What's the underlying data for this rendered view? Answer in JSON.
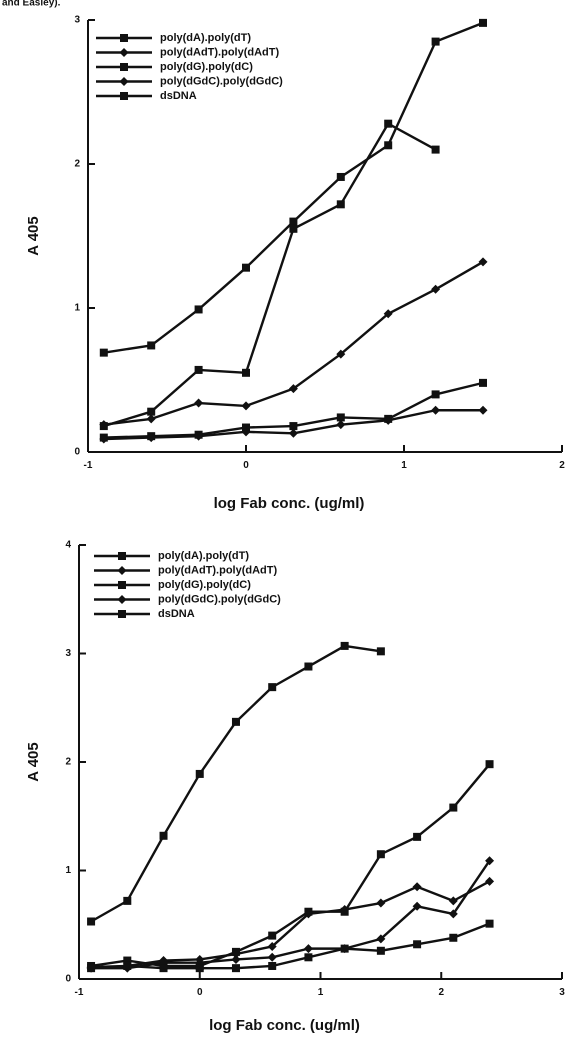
{
  "header_fragment": "and Easley).",
  "chart_data": [
    {
      "type": "line",
      "xlabel": "log Fab conc. (ug/ml)",
      "ylabel": "A 405",
      "xlim": [
        -1,
        2
      ],
      "ylim": [
        0,
        3
      ],
      "x_ticks": [
        "-1",
        "0",
        "1",
        "2"
      ],
      "y_ticks": [
        "0",
        "1",
        "2",
        "3"
      ],
      "grid": false,
      "legend_position": "top-left",
      "series": [
        {
          "name": "poly(dA).poly(dT)",
          "marker": "square",
          "x": [
            -0.9,
            -0.6,
            -0.3,
            0,
            0.3,
            0.6,
            0.9,
            1.2,
            1.5
          ],
          "y": [
            0.69,
            0.74,
            0.99,
            1.28,
            1.6,
            1.91,
            2.13,
            2.85,
            2.98
          ]
        },
        {
          "name": "poly(dAdT).poly(dAdT)",
          "marker": "diamond",
          "x": [
            -0.9,
            -0.6,
            -0.3,
            0,
            0.3,
            0.6,
            0.9,
            1.2,
            1.5
          ],
          "y": [
            0.19,
            0.23,
            0.34,
            0.32,
            0.44,
            0.68,
            0.96,
            1.13,
            1.32
          ]
        },
        {
          "name": "poly(dG).poly(dC)",
          "marker": "square",
          "x": [
            -0.9,
            -0.6,
            -0.3,
            0,
            0.3,
            0.6,
            0.9,
            1.2,
            1.5
          ],
          "y": [
            0.1,
            0.11,
            0.12,
            0.17,
            0.18,
            0.24,
            0.23,
            0.4,
            0.48
          ]
        },
        {
          "name": "poly(dGdC).poly(dGdC)",
          "marker": "diamond",
          "x": [
            -0.9,
            -0.6,
            -0.3,
            0,
            0.3,
            0.6,
            0.9,
            1.2,
            1.5
          ],
          "y": [
            0.09,
            0.1,
            0.11,
            0.14,
            0.13,
            0.19,
            0.22,
            0.29,
            0.29
          ]
        },
        {
          "name": "dsDNA",
          "marker": "square",
          "x": [
            -0.9,
            -0.6,
            -0.3,
            0,
            0.3,
            0.6,
            0.9,
            1.2
          ],
          "y": [
            0.18,
            0.28,
            0.57,
            0.55,
            1.55,
            1.72,
            2.28,
            2.1
          ]
        }
      ]
    },
    {
      "type": "line",
      "xlabel": "log Fab conc. (ug/ml)",
      "ylabel": "A 405",
      "xlim": [
        -1,
        3
      ],
      "ylim": [
        0,
        4
      ],
      "x_ticks": [
        "-1",
        "0",
        "1",
        "2",
        "3"
      ],
      "y_ticks": [
        "0",
        "1",
        "2",
        "3",
        "4"
      ],
      "grid": false,
      "legend_position": "top-left",
      "series": [
        {
          "name": "poly(dA).poly(dT)",
          "marker": "square",
          "x": [
            -0.9,
            -0.6,
            -0.3,
            0,
            0.3,
            0.6,
            0.9,
            1.2,
            1.5
          ],
          "y": [
            0.53,
            0.72,
            1.32,
            1.89,
            2.37,
            2.69,
            2.88,
            3.07,
            3.02
          ]
        },
        {
          "name": "poly(dAdT).poly(dAdT)",
          "marker": "diamond",
          "x": [
            -0.9,
            -0.6,
            -0.3,
            0,
            0.3,
            0.6,
            0.9,
            1.2,
            1.5,
            1.8,
            2.1,
            2.4
          ],
          "y": [
            0.1,
            0.1,
            0.15,
            0.15,
            0.18,
            0.2,
            0.28,
            0.28,
            0.37,
            0.67,
            0.6,
            1.09
          ]
        },
        {
          "name": "poly(dG).poly(dC)",
          "marker": "square",
          "x": [
            -0.9,
            -0.6,
            -0.3,
            0,
            0.3,
            0.6,
            0.9,
            1.2,
            1.5,
            1.8,
            2.1,
            2.4
          ],
          "y": [
            0.12,
            0.17,
            0.12,
            0.12,
            0.25,
            0.4,
            0.62,
            0.62,
            1.15,
            1.31,
            1.58,
            1.98
          ]
        },
        {
          "name": "poly(dGdC).poly(dGdC)",
          "marker": "diamond",
          "x": [
            -0.9,
            -0.6,
            -0.3,
            0,
            0.3,
            0.6,
            0.9,
            1.2,
            1.5,
            1.8,
            2.1,
            2.4
          ],
          "y": [
            0.11,
            0.12,
            0.17,
            0.18,
            0.23,
            0.3,
            0.6,
            0.64,
            0.7,
            0.85,
            0.72,
            0.9
          ]
        },
        {
          "name": "dsDNA",
          "marker": "square",
          "x": [
            -0.9,
            -0.6,
            -0.3,
            0,
            0.3,
            0.6,
            0.9,
            1.2,
            1.5,
            1.8,
            2.1,
            2.4
          ],
          "y": [
            0.1,
            0.12,
            0.1,
            0.1,
            0.1,
            0.12,
            0.2,
            0.28,
            0.26,
            0.32,
            0.38,
            0.51
          ]
        }
      ]
    }
  ]
}
